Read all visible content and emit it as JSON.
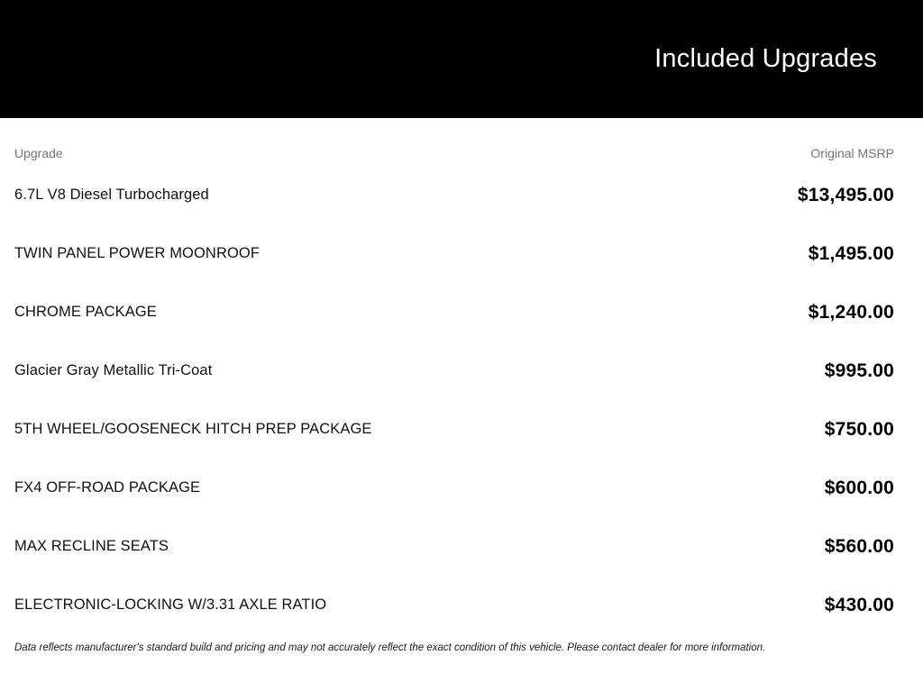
{
  "header": {
    "title": "Included Upgrades",
    "background_color": "#000000",
    "text_color": "#ffffff"
  },
  "table": {
    "columns": {
      "upgrade": "Upgrade",
      "msrp": "Original MSRP"
    },
    "rows": [
      {
        "name": "6.7L V8 Diesel Turbocharged",
        "price": "$13,495.00"
      },
      {
        "name": "TWIN PANEL POWER MOONROOF",
        "price": "$1,495.00"
      },
      {
        "name": "CHROME PACKAGE",
        "price": "$1,240.00"
      },
      {
        "name": "Glacier Gray Metallic Tri-Coat",
        "price": "$995.00"
      },
      {
        "name": "5TH WHEEL/GOOSENECK HITCH PREP PACKAGE",
        "price": "$750.00"
      },
      {
        "name": "FX4 OFF-ROAD PACKAGE",
        "price": "$600.00"
      },
      {
        "name": "MAX RECLINE SEATS",
        "price": "$560.00"
      },
      {
        "name": "ELECTRONIC-LOCKING W/3.31 AXLE RATIO",
        "price": "$430.00"
      }
    ]
  },
  "disclaimer": "Data reflects manufacturer's standard build and pricing and may not accurately reflect the exact condition of this vehicle. Please contact dealer for more information."
}
